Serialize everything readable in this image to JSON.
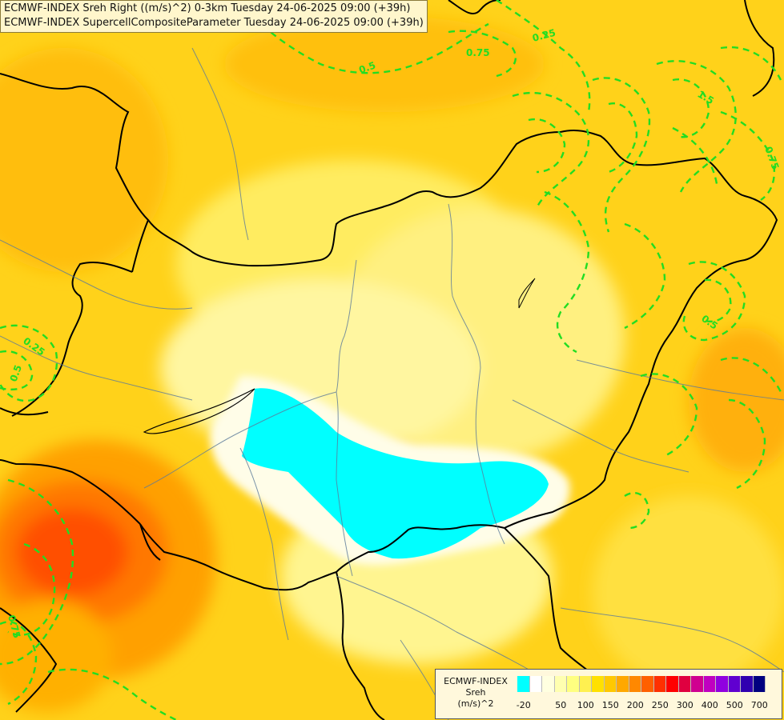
{
  "title": {
    "line1": "ECMWF-INDEX Sreh Right ((m/s)^2) 0-3km Tuesday 24-06-2025 09:00 (+39h)",
    "line2": "ECMWF-INDEX SupercellCompositeParameter Tuesday 24-06-2025 09:00 (+39h)"
  },
  "legend": {
    "name_line1": "ECMWF-INDEX",
    "name_line2": "Sreh",
    "name_line3": "(m/s)^2",
    "colors": [
      "#00ffff",
      "#ffffff",
      "#ffffe0",
      "#ffffb0",
      "#ffff80",
      "#fff050",
      "#ffe000",
      "#ffc800",
      "#ffa800",
      "#ff8800",
      "#ff6000",
      "#ff3000",
      "#ff0000",
      "#e00040",
      "#d00090",
      "#c000c0",
      "#9000e0",
      "#6000d0",
      "#3000b0",
      "#000080"
    ],
    "ticks": [
      {
        "label": "-20",
        "i": 0
      },
      {
        "label": "50",
        "i": 3
      },
      {
        "label": "100",
        "i": 5
      },
      {
        "label": "150",
        "i": 7
      },
      {
        "label": "200",
        "i": 9
      },
      {
        "label": "250",
        "i": 11
      },
      {
        "label": "300",
        "i": 13
      },
      {
        "label": "400",
        "i": 15
      },
      {
        "label": "500",
        "i": 17
      },
      {
        "label": "700",
        "i": 19
      }
    ]
  },
  "contour_labels": [
    "0.25",
    "0.5",
    "0.5",
    "0.75",
    "1.5",
    "0.75",
    "0.25",
    "0.5",
    "0.75"
  ]
}
